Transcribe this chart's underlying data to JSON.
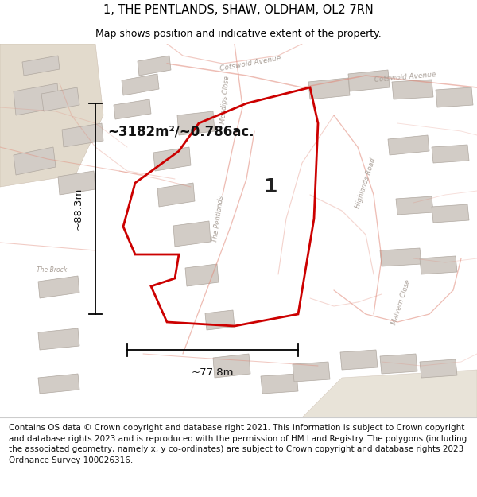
{
  "title_line1": "1, THE PENTLANDS, SHAW, OLDHAM, OL2 7RN",
  "title_line2": "Map shows position and indicative extent of the property.",
  "footer_text": "Contains OS data © Crown copyright and database right 2021. This information is subject to Crown copyright and database rights 2023 and is reproduced with the permission of HM Land Registry. The polygons (including the associated geometry, namely x, y co-ordinates) are subject to Crown copyright and database rights 2023 Ordnance Survey 100026316.",
  "area_label": "~3182m²/~0.786ac.",
  "label_number": "1",
  "height_label": "~88.3m",
  "width_label": "~77.8m",
  "highlight_color": "#cc0000",
  "title_fontsize": 10.5,
  "subtitle_fontsize": 9,
  "footer_fontsize": 7.5
}
